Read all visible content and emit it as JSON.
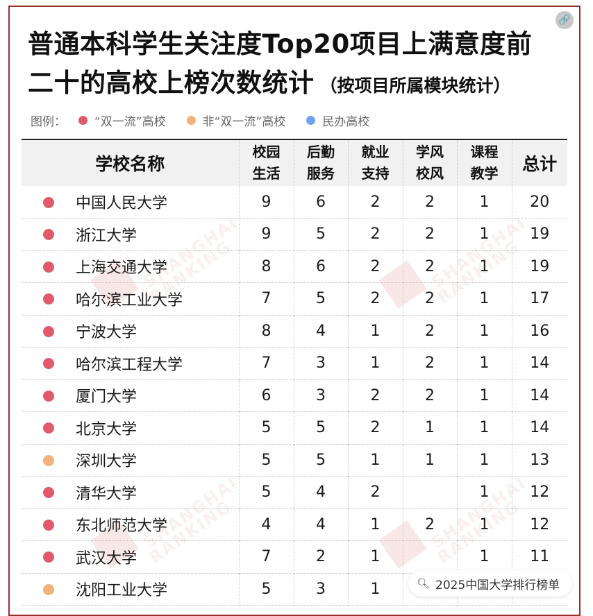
{
  "title": {
    "line1": "普通本科学生关注度Top20项目上满意度前",
    "line2": "二十的高校上榜次数统计",
    "subtitle": "（按项目所属模块统计）"
  },
  "legend": {
    "label": "图例：",
    "items": [
      {
        "label": "“双一流”高校",
        "color": "#e05a6b"
      },
      {
        "label": "非“双一流”高校",
        "color": "#f2b27a"
      },
      {
        "label": "民办高校",
        "color": "#6fa3f0"
      }
    ]
  },
  "table": {
    "headers": {
      "school": "学校名称",
      "campus_1": "校园",
      "campus_2": "生活",
      "service_1": "后勤",
      "service_2": "服务",
      "employ_1": "就业",
      "employ_2": "支持",
      "style_1": "学风",
      "style_2": "校风",
      "teach_1": "课程",
      "teach_2": "教学",
      "total": "总计"
    },
    "rows": [
      {
        "color": "#e05a6b",
        "school": "中国人民大学",
        "campus": "9",
        "service": "6",
        "employ": "2",
        "style": "2",
        "teach": "1",
        "total": "20"
      },
      {
        "color": "#e05a6b",
        "school": "浙江大学",
        "campus": "9",
        "service": "5",
        "employ": "2",
        "style": "2",
        "teach": "1",
        "total": "19"
      },
      {
        "color": "#e05a6b",
        "school": "上海交通大学",
        "campus": "8",
        "service": "6",
        "employ": "2",
        "style": "2",
        "teach": "1",
        "total": "19"
      },
      {
        "color": "#e05a6b",
        "school": "哈尔滨工业大学",
        "campus": "7",
        "service": "5",
        "employ": "2",
        "style": "2",
        "teach": "1",
        "total": "17"
      },
      {
        "color": "#e05a6b",
        "school": "宁波大学",
        "campus": "8",
        "service": "4",
        "employ": "1",
        "style": "2",
        "teach": "1",
        "total": "16"
      },
      {
        "color": "#e05a6b",
        "school": "哈尔滨工程大学",
        "campus": "7",
        "service": "3",
        "employ": "1",
        "style": "2",
        "teach": "1",
        "total": "14"
      },
      {
        "color": "#e05a6b",
        "school": "厦门大学",
        "campus": "6",
        "service": "3",
        "employ": "2",
        "style": "2",
        "teach": "1",
        "total": "14"
      },
      {
        "color": "#e05a6b",
        "school": "北京大学",
        "campus": "5",
        "service": "5",
        "employ": "2",
        "style": "1",
        "teach": "1",
        "total": "14"
      },
      {
        "color": "#f2b27a",
        "school": "深圳大学",
        "campus": "5",
        "service": "5",
        "employ": "1",
        "style": "1",
        "teach": "1",
        "total": "13"
      },
      {
        "color": "#e05a6b",
        "school": "清华大学",
        "campus": "5",
        "service": "4",
        "employ": "2",
        "style": "",
        "teach": "1",
        "total": "12"
      },
      {
        "color": "#e05a6b",
        "school": "东北师范大学",
        "campus": "4",
        "service": "4",
        "employ": "1",
        "style": "2",
        "teach": "1",
        "total": "12"
      },
      {
        "color": "#e05a6b",
        "school": "武汉大学",
        "campus": "7",
        "service": "2",
        "employ": "1",
        "style": "",
        "teach": "1",
        "total": "11"
      },
      {
        "color": "#f2b27a",
        "school": "沈阳工业大学",
        "campus": "5",
        "service": "3",
        "employ": "1",
        "style": "",
        "teach": "",
        "total": ""
      }
    ]
  },
  "watermark": {
    "text_1": "SHANGHAI",
    "text_2": "RANKING"
  },
  "search_pill": {
    "icon": "search-icon",
    "text": "2025中国大学排行榜单"
  }
}
